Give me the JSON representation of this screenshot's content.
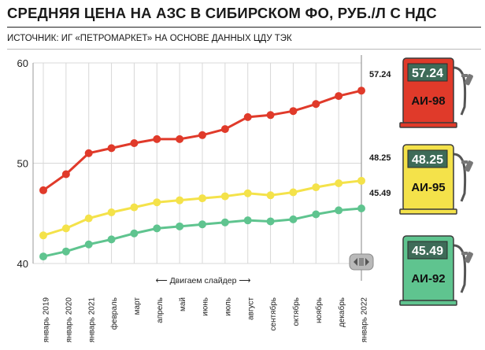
{
  "header": {
    "title": "СРЕДНЯЯ ЦЕНА НА АЗС В СИБИРСКОМ ФО, РУБ./Л С НДС",
    "source": "ИСТОЧНИК: ИГ «ПЕТРОМАРКЕТ» НА ОСНОВЕ ДАННЫХ ЦДУ ТЭК"
  },
  "slider": {
    "hint": "⟵ Двигаем слайдер ⟶"
  },
  "colors": {
    "ai98": "#e03a2a",
    "ai95": "#f4e24a",
    "ai92": "#5fc48f",
    "grid": "#d8d8d8",
    "pump_screen": "#3e6b58"
  },
  "chart_data": {
    "type": "line",
    "title": "СРЕДНЯЯ ЦЕНА НА АЗС В СИБИРСКОМ ФО, РУБ./Л С НДС",
    "xlabel": "",
    "ylabel": "",
    "ylim": [
      40,
      60
    ],
    "yticks": [
      40,
      50,
      60
    ],
    "grid": true,
    "legend": "right",
    "categories": [
      "январь 2019",
      "январь 2020",
      "январь 2021",
      "февраль",
      "март",
      "апрель",
      "май",
      "июнь",
      "июль",
      "август",
      "сентябрь",
      "октябрь",
      "ноябрь",
      "декабрь",
      "январь 2022"
    ],
    "series": [
      {
        "name": "АИ-98",
        "color": "#e03a2a",
        "values": [
          47.3,
          48.9,
          51.0,
          51.5,
          52.0,
          52.4,
          52.4,
          52.8,
          53.4,
          54.6,
          54.8,
          55.2,
          55.9,
          56.7,
          57.24
        ]
      },
      {
        "name": "АИ-95",
        "color": "#f4e24a",
        "values": [
          42.8,
          43.5,
          44.5,
          45.1,
          45.6,
          46.1,
          46.3,
          46.5,
          46.7,
          47.0,
          46.8,
          47.1,
          47.6,
          48.0,
          48.25
        ]
      },
      {
        "name": "АИ-92",
        "color": "#5fc48f",
        "values": [
          40.7,
          41.2,
          41.9,
          42.4,
          43.0,
          43.5,
          43.7,
          43.9,
          44.1,
          44.3,
          44.2,
          44.4,
          44.9,
          45.3,
          45.49
        ]
      }
    ],
    "end_labels": [
      "57.24",
      "48.25",
      "45.49"
    ]
  },
  "pumps": [
    {
      "price": "57.24",
      "label": "АИ-98",
      "color": "#e03a2a"
    },
    {
      "price": "48.25",
      "label": "АИ-95",
      "color": "#f4e24a"
    },
    {
      "price": "45.49",
      "label": "АИ-92",
      "color": "#5fc48f"
    }
  ]
}
